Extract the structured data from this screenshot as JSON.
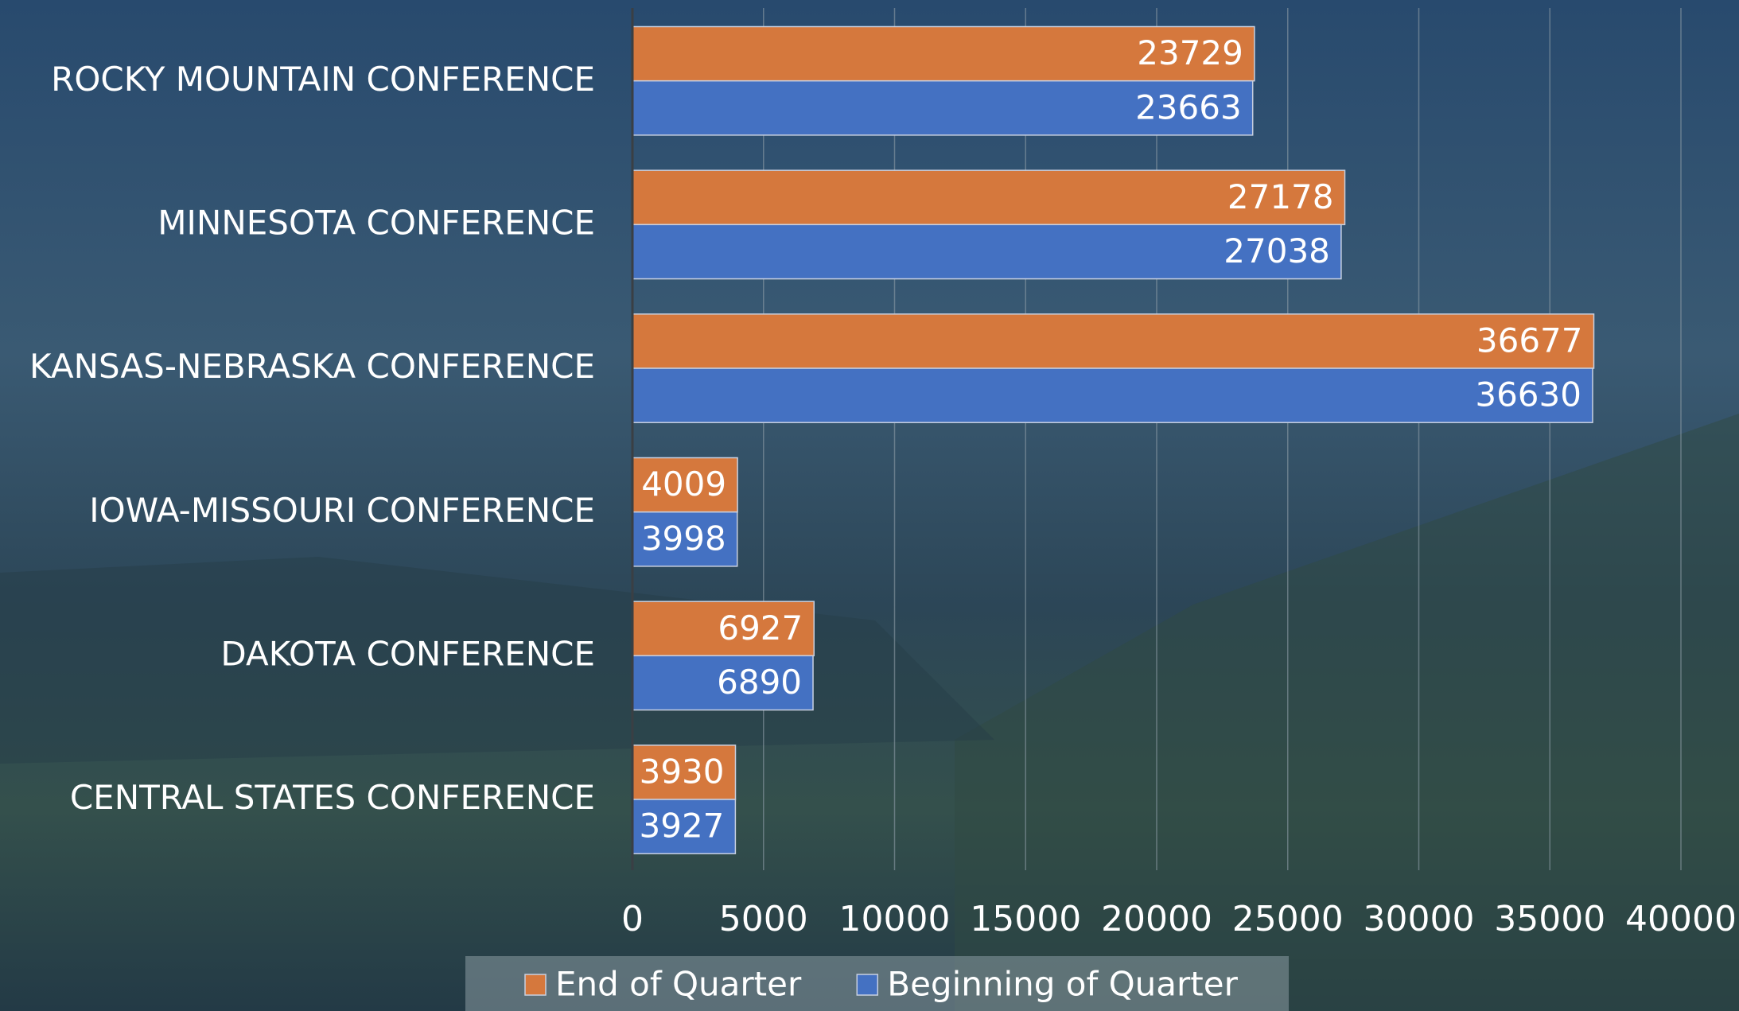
{
  "chart_data": {
    "type": "hbar",
    "categories": [
      "ROCKY MOUNTAIN CONFERENCE",
      "MINNESOTA CONFERENCE",
      "KANSAS-NEBRASKA CONFERENCE",
      "IOWA-MISSOURI CONFERENCE",
      "DAKOTA CONFERENCE",
      "CENTRAL STATES CONFERENCE"
    ],
    "series": [
      {
        "name": "End of Quarter",
        "color": "#d5783d",
        "values": [
          23729,
          27178,
          36677,
          4009,
          6927,
          3930
        ]
      },
      {
        "name": "Beginning of Quarter",
        "color": "#4471c2",
        "values": [
          23663,
          27038,
          36630,
          3998,
          6890,
          3927
        ]
      }
    ],
    "xlim": [
      0,
      40000
    ],
    "xticks": [
      0,
      5000,
      10000,
      15000,
      20000,
      25000,
      30000,
      35000,
      40000
    ],
    "grid": true,
    "legend": "bottom"
  }
}
